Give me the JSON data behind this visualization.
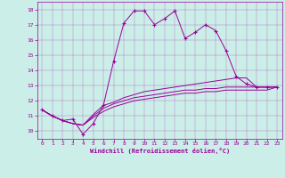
{
  "xlabel": "Windchill (Refroidissement éolien,°C)",
  "background_color": "#cceee8",
  "line_color": "#990099",
  "xlim": [
    -0.5,
    23.5
  ],
  "ylim": [
    9.5,
    18.5
  ],
  "xticks": [
    0,
    1,
    2,
    3,
    4,
    5,
    6,
    7,
    8,
    9,
    10,
    11,
    12,
    13,
    14,
    15,
    16,
    17,
    18,
    19,
    20,
    21,
    22,
    23
  ],
  "yticks": [
    10,
    11,
    12,
    13,
    14,
    15,
    16,
    17,
    18
  ],
  "series": [
    {
      "x": [
        0,
        1,
        2,
        3,
        4,
        5,
        6,
        7,
        8,
        9,
        10,
        11,
        12,
        13,
        14,
        15,
        16,
        17,
        18,
        19,
        20,
        21,
        22,
        23
      ],
      "y": [
        11.4,
        11.0,
        10.7,
        10.8,
        9.8,
        10.5,
        11.7,
        14.6,
        17.1,
        17.9,
        17.9,
        17.0,
        17.4,
        17.9,
        16.1,
        16.5,
        17.0,
        16.6,
        15.3,
        13.6,
        13.1,
        12.9,
        12.9,
        12.9
      ],
      "marker": "+"
    },
    {
      "x": [
        0,
        1,
        2,
        3,
        4,
        5,
        6,
        7,
        8,
        9,
        10,
        11,
        12,
        13,
        14,
        15,
        16,
        17,
        18,
        19,
        20,
        21,
        22,
        23
      ],
      "y": [
        11.4,
        11.0,
        10.7,
        10.5,
        10.4,
        11.1,
        11.7,
        11.9,
        12.2,
        12.4,
        12.6,
        12.7,
        12.8,
        12.9,
        13.0,
        13.1,
        13.2,
        13.3,
        13.4,
        13.5,
        13.5,
        12.9,
        12.9,
        12.9
      ],
      "marker": null
    },
    {
      "x": [
        0,
        1,
        2,
        3,
        4,
        5,
        6,
        7,
        8,
        9,
        10,
        11,
        12,
        13,
        14,
        15,
        16,
        17,
        18,
        19,
        20,
        21,
        22,
        23
      ],
      "y": [
        11.4,
        11.0,
        10.7,
        10.5,
        10.4,
        11.0,
        11.5,
        11.8,
        12.0,
        12.2,
        12.3,
        12.4,
        12.5,
        12.6,
        12.7,
        12.7,
        12.8,
        12.8,
        12.9,
        12.9,
        12.9,
        12.9,
        12.9,
        12.9
      ],
      "marker": null
    },
    {
      "x": [
        0,
        1,
        2,
        3,
        4,
        5,
        6,
        7,
        8,
        9,
        10,
        11,
        12,
        13,
        14,
        15,
        16,
        17,
        18,
        19,
        20,
        21,
        22,
        23
      ],
      "y": [
        11.4,
        11.0,
        10.7,
        10.5,
        10.4,
        10.9,
        11.3,
        11.6,
        11.8,
        12.0,
        12.1,
        12.2,
        12.3,
        12.4,
        12.5,
        12.5,
        12.6,
        12.6,
        12.7,
        12.7,
        12.7,
        12.7,
        12.7,
        12.9
      ],
      "marker": null
    }
  ]
}
